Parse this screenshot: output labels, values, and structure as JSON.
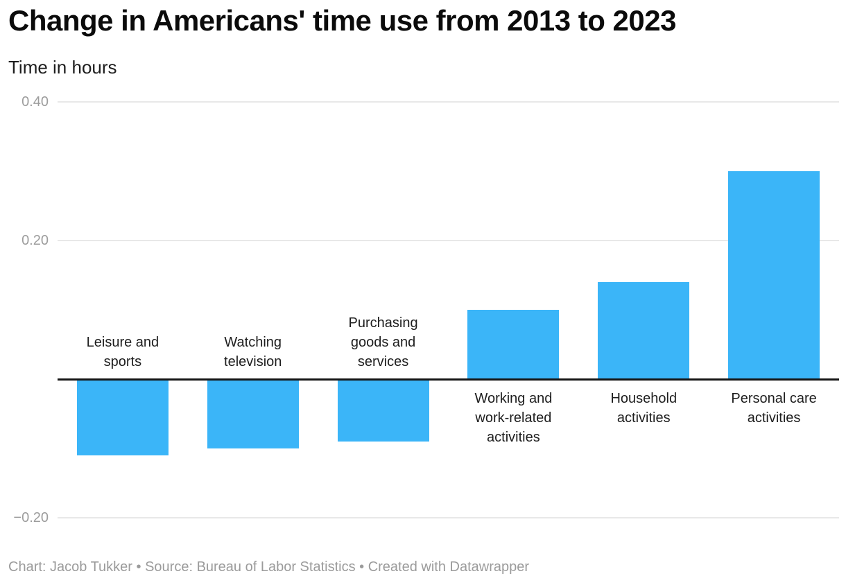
{
  "header": {
    "title": "Change in Americans' time use from 2013 to 2023",
    "subtitle": "Time in hours"
  },
  "footer": {
    "byline": "Chart: Jacob Tukker • Source: Bureau of Labor Statistics • Created with Datawrapper"
  },
  "chart_data": {
    "type": "bar",
    "title": "Change in Americans' time use from 2013 to 2023",
    "ylabel": "Time in hours",
    "xlabel": "",
    "categories": [
      "Leisure and sports",
      "Watching television",
      "Purchasing goods and services",
      "Working and work-related activities",
      "Household activities",
      "Personal care activities"
    ],
    "values": [
      -0.11,
      -0.1,
      -0.09,
      0.1,
      0.14,
      0.3
    ],
    "baseline_value": 0,
    "y_ticks": [
      {
        "value": 0.4,
        "label": "0.40"
      },
      {
        "value": 0.2,
        "label": "0.20"
      },
      {
        "value": -0.2,
        "label": "−0.20"
      }
    ],
    "ylim": [
      -0.24,
      0.44
    ],
    "grid": true,
    "legend": false,
    "colors": {
      "bar": "#3BB5F8",
      "gridline": "#E8E8E8",
      "baseline": "#141414",
      "tick_label": "#9D9D9D",
      "category_label": "#1D1D1D",
      "title_text": "#0B0B0B",
      "subtitle_text": "#1D1D1D",
      "footer_text": "#9B9B9B"
    }
  }
}
